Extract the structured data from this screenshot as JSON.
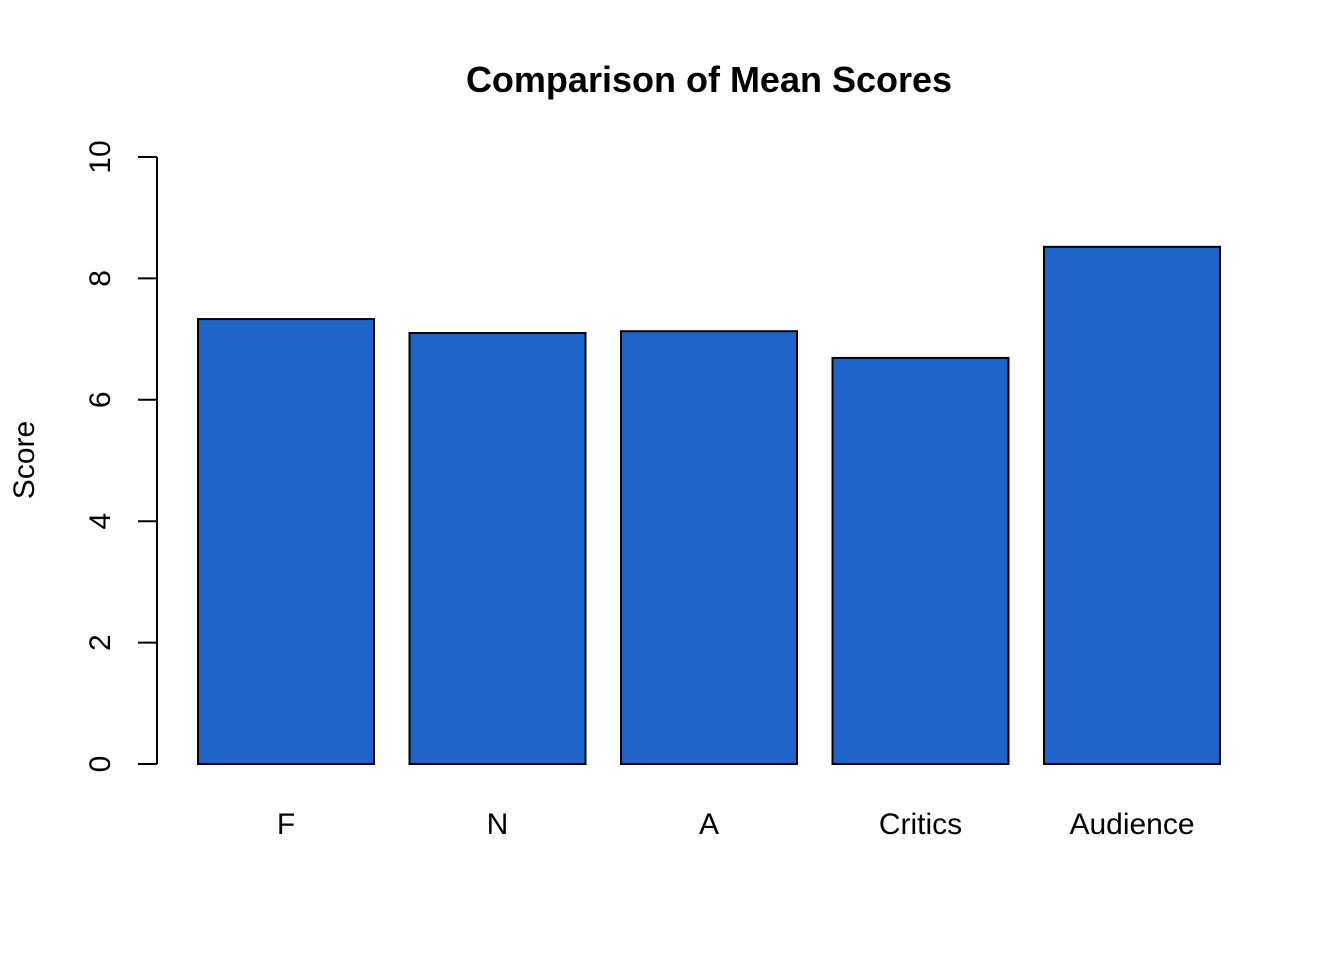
{
  "chart_data": {
    "type": "bar",
    "title": "Comparison of Mean Scores",
    "xlabel": "",
    "ylabel": "Score",
    "categories": [
      "F",
      "N",
      "A",
      "Critics",
      "Audience"
    ],
    "values": [
      7.33,
      7.1,
      7.13,
      6.69,
      8.52
    ],
    "ylim": [
      0,
      10
    ],
    "yticks": [
      0,
      2,
      4,
      6,
      8,
      10
    ],
    "grid": false,
    "legend": "none",
    "bar_color": "#1E64C8",
    "border_color": "#000000"
  }
}
